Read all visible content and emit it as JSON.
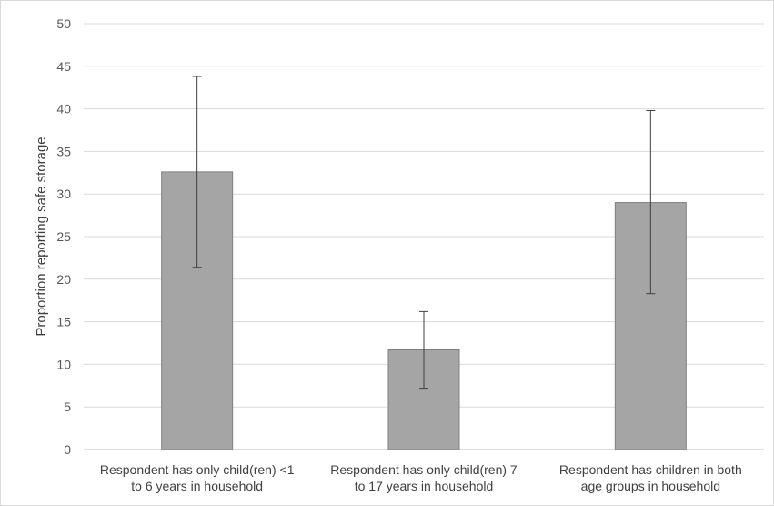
{
  "chart_data": {
    "type": "bar",
    "title": "",
    "xlabel": "",
    "ylabel": "Proportion reporting safe storage",
    "ylim": [
      0,
      50
    ],
    "yticks": [
      0,
      5,
      10,
      15,
      20,
      25,
      30,
      35,
      40,
      45,
      50
    ],
    "grid": true,
    "legend": "none",
    "bar_color": "#a5a5a5",
    "bar_stroke": "#7f7f7f",
    "categories": [
      [
        "Respondent has only child(ren) <1",
        "to 6 years in household"
      ],
      [
        "Respondent has only child(ren) 7",
        "to 17 years in household"
      ],
      [
        "Respondent has children in both",
        "age groups in household"
      ]
    ],
    "values": [
      32.6,
      11.7,
      29.0
    ],
    "error_low": [
      21.4,
      7.2,
      18.3
    ],
    "error_high": [
      43.8,
      16.2,
      39.8
    ]
  }
}
